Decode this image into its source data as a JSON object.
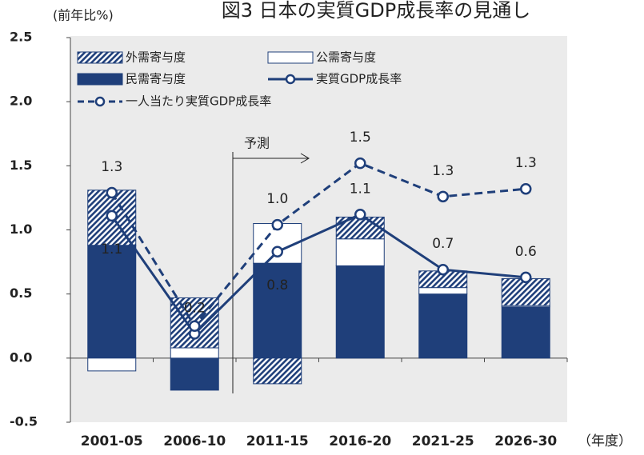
{
  "chart_data": {
    "type": "bar",
    "title": "図3 日本の実質GDP成長率の見通し",
    "y_label": "(前年比%)",
    "x_unit": "（年度）",
    "annotation": "予測",
    "categories": [
      "2001-05",
      "2006-10",
      "2011-15",
      "2016-20",
      "2021-25",
      "2026-30"
    ],
    "ylim": [
      -0.5,
      2.5
    ],
    "yticks": [
      2.5,
      {
        "value": 2,
        "label": "2.0"
      },
      1.5,
      {
        "value": 1,
        "label": "1.0"
      },
      0.5,
      {
        "value": 0,
        "label": "0.0"
      },
      -0.5
    ],
    "background": "#ebebeb",
    "series": [
      {
        "name": "民需寄与度",
        "kind": "bar",
        "color": "#1f3f7a",
        "values": [
          0.88,
          -0.25,
          0.74,
          0.72,
          0.5,
          0.4
        ]
      },
      {
        "name": "公需寄与度",
        "kind": "bar",
        "color": "#ffffff",
        "values": [
          -0.1,
          0.08,
          0.31,
          0.21,
          0.05,
          0.01
        ]
      },
      {
        "name": "外需寄与度",
        "kind": "bar",
        "color": "#1f3f7a",
        "pattern": "hatch",
        "values": [
          0.43,
          0.39,
          -0.2,
          0.17,
          0.13,
          0.21
        ]
      },
      {
        "name": "実質GDP成長率",
        "kind": "line",
        "color": "#1f3f7a",
        "dashed": false,
        "values": [
          1.11,
          0.19,
          0.83,
          1.12,
          0.69,
          0.63
        ],
        "value_labels": [
          "1.1",
          "0.2",
          "0.8",
          "1.1",
          "0.7",
          "0.6"
        ]
      },
      {
        "name": "一人当たり実質GDP成長率",
        "kind": "line",
        "color": "#1f3f7a",
        "dashed": true,
        "values": [
          1.29,
          0.25,
          1.04,
          1.52,
          1.26,
          1.32
        ],
        "value_labels": [
          "1.3",
          null,
          "1.0",
          "1.5",
          "1.3",
          "1.3"
        ]
      }
    ]
  }
}
